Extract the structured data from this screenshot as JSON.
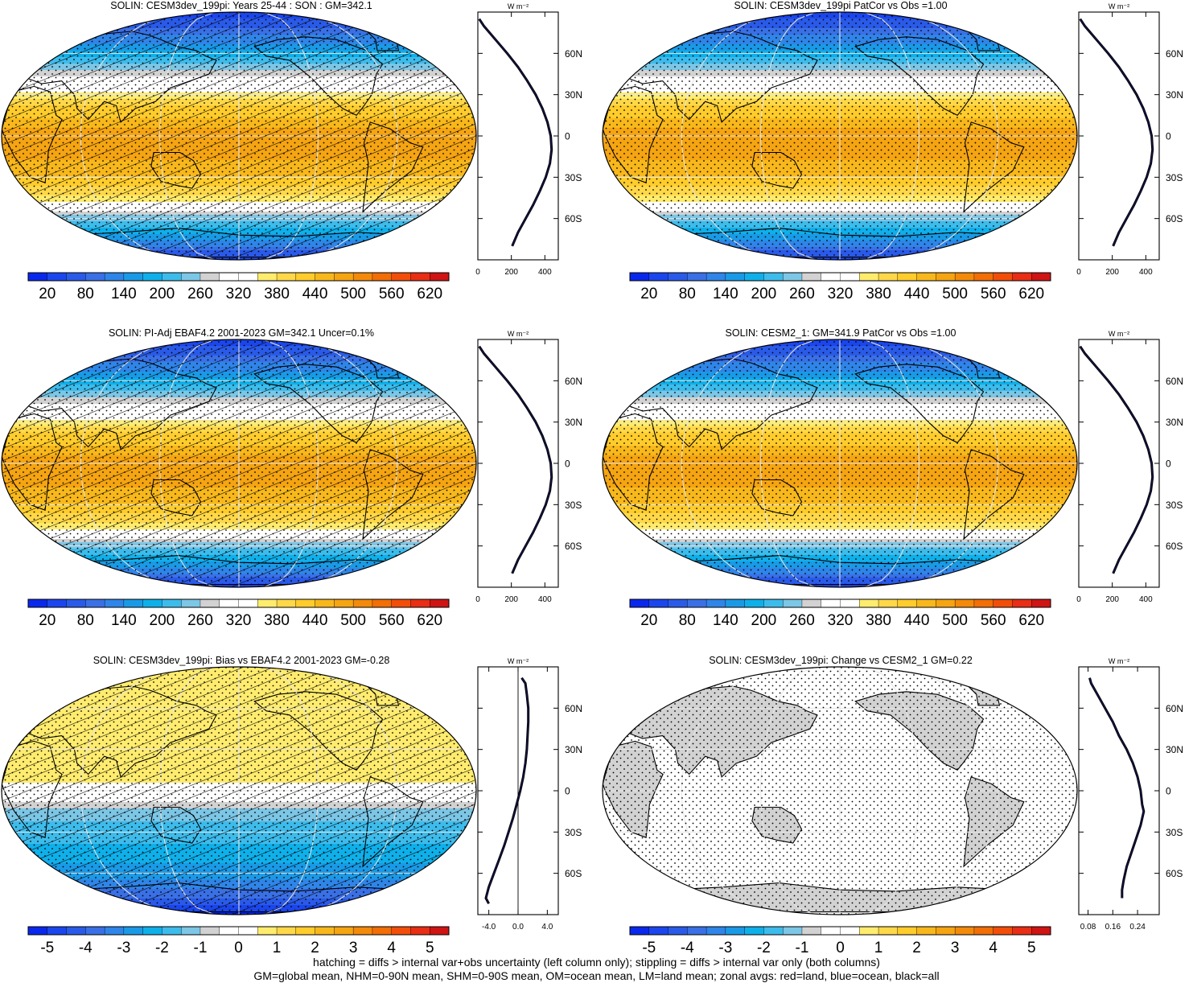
{
  "colormap": [
    "#0a28ec",
    "#1b46ee",
    "#2a5ae8",
    "#3a70e6",
    "#2f85e8",
    "#1a9ae6",
    "#0fb0ea",
    "#3dbcec",
    "#7cc6e6",
    "#d2d2d2",
    "#ffffff",
    "#ffffff",
    "#ffec6e",
    "#ffd84a",
    "#ffcc2c",
    "#f8b81c",
    "#f5a412",
    "#f38a0a",
    "#f26e06",
    "#f24e0a",
    "#e82e14",
    "#cf1414"
  ],
  "chart_data": [
    {
      "type": "heatmap",
      "title": "SOLIN: CESM3dev_199pi: Years 25-44 : SON : GM=342.1",
      "colorbar_labels": [
        "20",
        "80",
        "140",
        "200",
        "260",
        "320",
        "380",
        "440",
        "500",
        "560",
        "620"
      ],
      "overlay": "hatch+stipple",
      "profile": {
        "xticks": [
          "0",
          "200",
          "400"
        ],
        "xlim": [
          0,
          480
        ],
        "lat": [
          -80,
          -70,
          -60,
          -50,
          -40,
          -30,
          -20,
          -10,
          0,
          10,
          20,
          30,
          40,
          50,
          60,
          70,
          80,
          85
        ],
        "values": [
          205,
          240,
          285,
          330,
          370,
          405,
          430,
          440,
          435,
          415,
          385,
          345,
          295,
          240,
          175,
          105,
          35,
          8
        ]
      }
    },
    {
      "type": "heatmap",
      "title": "SOLIN: CESM3dev_199pi PatCor vs Obs =1.00",
      "colorbar_labels": [
        "20",
        "80",
        "140",
        "200",
        "260",
        "320",
        "380",
        "440",
        "500",
        "560",
        "620"
      ],
      "overlay": "stipple",
      "profile": {
        "xticks": [
          "0",
          "200",
          "400"
        ],
        "xlim": [
          0,
          480
        ],
        "lat": [
          -80,
          -70,
          -60,
          -50,
          -40,
          -30,
          -20,
          -10,
          0,
          10,
          20,
          30,
          40,
          50,
          60,
          70,
          80,
          85
        ],
        "values": [
          205,
          240,
          285,
          330,
          370,
          405,
          430,
          440,
          435,
          415,
          385,
          345,
          295,
          240,
          175,
          105,
          35,
          8
        ]
      }
    },
    {
      "type": "heatmap",
      "title": "SOLIN: PI-Adj EBAF4.2 2001-2023 GM=342.1 Uncer=0.1%",
      "colorbar_labels": [
        "20",
        "80",
        "140",
        "200",
        "260",
        "320",
        "380",
        "440",
        "500",
        "560",
        "620"
      ],
      "overlay": "hatch+stipple",
      "profile": {
        "xticks": [
          "0",
          "200",
          "400"
        ],
        "xlim": [
          0,
          480
        ],
        "lat": [
          -80,
          -70,
          -60,
          -50,
          -40,
          -30,
          -20,
          -10,
          0,
          10,
          20,
          30,
          40,
          50,
          60,
          70,
          80,
          85
        ],
        "values": [
          205,
          240,
          285,
          330,
          370,
          405,
          430,
          440,
          435,
          415,
          385,
          345,
          295,
          240,
          175,
          105,
          35,
          8
        ]
      }
    },
    {
      "type": "heatmap",
      "title": "SOLIN: CESM2_1: GM=341.9 PatCor vs Obs =1.00",
      "colorbar_labels": [
        "20",
        "80",
        "140",
        "200",
        "260",
        "320",
        "380",
        "440",
        "500",
        "560",
        "620"
      ],
      "overlay": "stipple",
      "profile": {
        "xticks": [
          "0",
          "200",
          "400"
        ],
        "xlim": [
          0,
          480
        ],
        "lat": [
          -80,
          -70,
          -60,
          -50,
          -40,
          -30,
          -20,
          -10,
          0,
          10,
          20,
          30,
          40,
          50,
          60,
          70,
          80,
          85
        ],
        "values": [
          205,
          240,
          285,
          330,
          370,
          405,
          430,
          440,
          435,
          415,
          385,
          345,
          295,
          240,
          175,
          105,
          35,
          8
        ]
      }
    },
    {
      "type": "heatmap",
      "title": "SOLIN: CESM3dev_199pi: Bias vs EBAF4.2 2001-2023  GM=-0.28",
      "colorbar_labels": [
        "-5",
        "-4",
        "-3",
        "-2",
        "-1",
        "0",
        "1",
        "2",
        "3",
        "4",
        "5"
      ],
      "overlay": "hatch+stipple",
      "profile": {
        "xticks": [
          "-4.0",
          "0.0",
          "4.0"
        ],
        "xlim": [
          -5.5,
          5.5
        ],
        "zero_line": true,
        "lat": [
          -82,
          -78,
          -70,
          -60,
          -50,
          -40,
          -30,
          -20,
          -10,
          0,
          10,
          20,
          30,
          40,
          50,
          60,
          70,
          78,
          82
        ],
        "values": [
          -4.0,
          -4.4,
          -4.0,
          -3.3,
          -2.6,
          -1.9,
          -1.3,
          -0.7,
          -0.2,
          0.3,
          0.7,
          1.0,
          1.2,
          1.3,
          1.4,
          1.4,
          1.2,
          1.0,
          0.5
        ]
      }
    },
    {
      "type": "heatmap",
      "title": "SOLIN: CESM3dev_199pi: Change vs CESM2_1 GM=0.22",
      "colorbar_labels": [
        "-5",
        "-4",
        "-3",
        "-2",
        "-1",
        "0",
        "1",
        "2",
        "3",
        "4",
        "5"
      ],
      "overlay": "stipple",
      "profile": {
        "xticks": [
          "0.08",
          "0.16",
          "0.24"
        ],
        "xlim": [
          0.05,
          0.31
        ],
        "lat": [
          -78,
          -72,
          -65,
          -55,
          -45,
          -35,
          -25,
          -15,
          -10,
          0,
          10,
          20,
          30,
          40,
          50,
          60,
          70,
          78,
          82
        ],
        "values": [
          0.19,
          0.19,
          0.195,
          0.205,
          0.22,
          0.235,
          0.25,
          0.26,
          0.255,
          0.25,
          0.24,
          0.225,
          0.205,
          0.18,
          0.16,
          0.135,
          0.11,
          0.09,
          0.085
        ]
      }
    }
  ],
  "profile_unit": "W m⁻²",
  "lat_labels": [
    "60N",
    "30N",
    "0",
    "30S",
    "60S"
  ],
  "lat_values": [
    60,
    30,
    0,
    -30,
    -60
  ],
  "footer": {
    "line1": "hatching = diffs > internal var+obs uncertainty (left column only); stippling = diffs > internal var only (both columns)",
    "line2": "GM=global mean, NHM=0-90N mean, SHM=0-90S mean, OM=ocean mean, LM=land mean; zonal avgs: red=land, blue=ocean, black=all"
  }
}
